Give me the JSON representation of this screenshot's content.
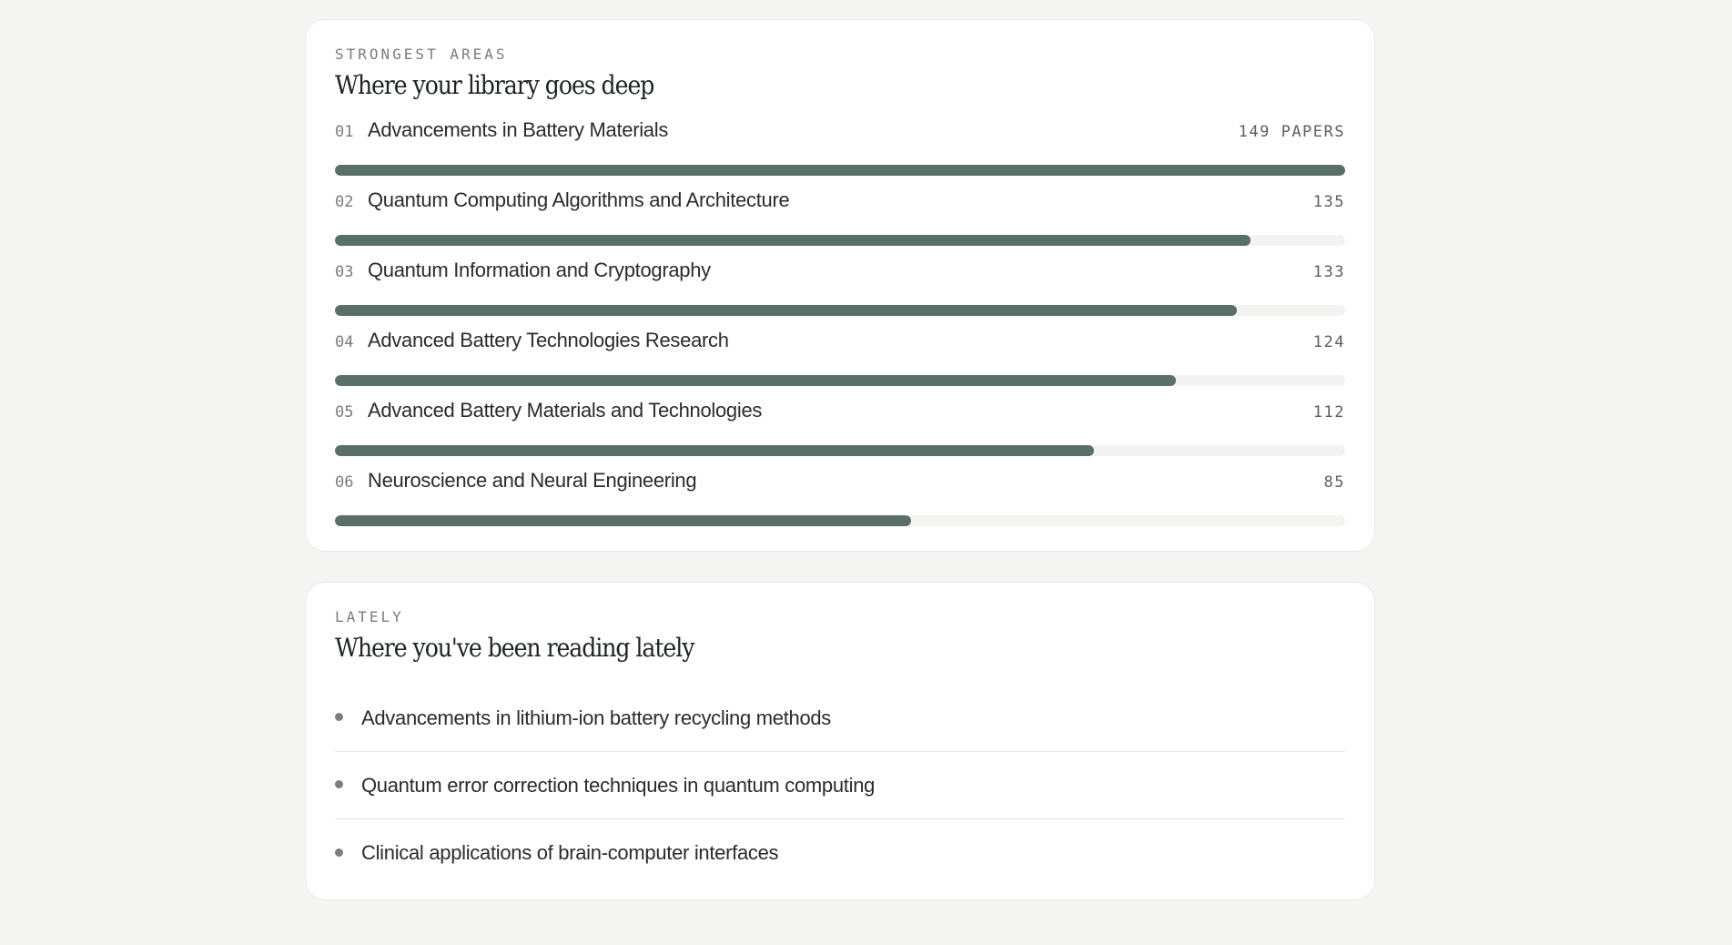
{
  "strongest": {
    "eyebrow": "STRONGEST AREAS",
    "title": "Where your library goes deep",
    "areas": [
      {
        "num": "01",
        "name": "Advancements in Battery Materials",
        "count": "149 PAPERS",
        "papers": 149
      },
      {
        "num": "02",
        "name": "Quantum Computing Algorithms and Architecture",
        "count": "135",
        "papers": 135
      },
      {
        "num": "03",
        "name": "Quantum Information and Cryptography",
        "count": "133",
        "papers": 133
      },
      {
        "num": "04",
        "name": "Advanced Battery Technologies Research",
        "count": "124",
        "papers": 124
      },
      {
        "num": "05",
        "name": "Advanced Battery Materials and Technologies",
        "count": "112",
        "papers": 112
      },
      {
        "num": "06",
        "name": "Neuroscience and Neural Engineering",
        "count": "85",
        "papers": 85
      }
    ],
    "max_papers": 149
  },
  "lately": {
    "eyebrow": "LATELY",
    "title": "Where you've been reading lately",
    "items": [
      "Advancements in lithium-ion battery recycling methods",
      "Quantum error correction techniques in quantum computing",
      "Clinical applications of brain-computer interfaces"
    ]
  },
  "colors": {
    "bar_fill": "#5a6e6a",
    "bar_track": "#f3f3f1",
    "background": "#f5f5f3",
    "card": "#ffffff"
  }
}
